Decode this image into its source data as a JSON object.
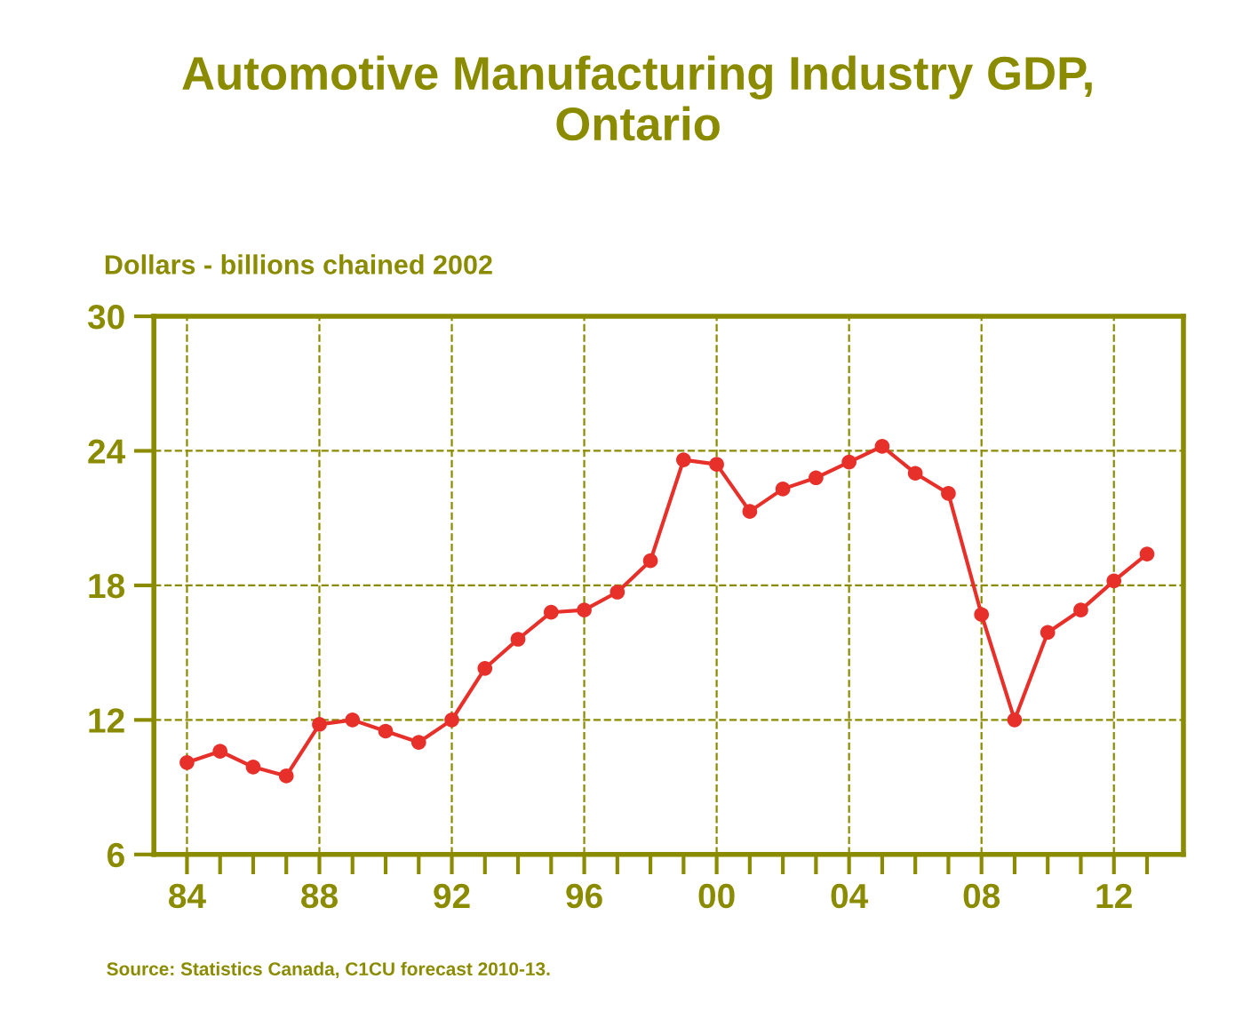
{
  "chart_data": {
    "type": "line",
    "title": "Automotive Manufacturing Industry GDP,\nOntario",
    "ylabel": "Dollars - billions chained 2002",
    "annotations": [
      "Source: Statistics Canada, C1CU forecast 2010-13."
    ],
    "x": [
      1984,
      1985,
      1986,
      1987,
      1988,
      1989,
      1990,
      1991,
      1992,
      1993,
      1994,
      1995,
      1996,
      1997,
      1998,
      1999,
      2000,
      2001,
      2002,
      2003,
      2004,
      2005,
      2006,
      2007,
      2008,
      2009,
      2010,
      2011,
      2012,
      2013
    ],
    "series": [
      {
        "color": "#e8302a",
        "values": [
          10.1,
          10.6,
          9.9,
          9.5,
          11.8,
          12.0,
          11.5,
          11.0,
          12.0,
          14.3,
          15.6,
          16.8,
          16.9,
          17.7,
          19.1,
          23.6,
          23.4,
          21.3,
          22.3,
          22.8,
          23.5,
          24.2,
          23.0,
          22.1,
          16.7,
          12.0,
          15.9,
          16.9,
          18.2,
          19.4
        ]
      }
    ],
    "xlim": [
      1983,
      2014.1
    ],
    "ylim": [
      6,
      30
    ],
    "yticks": [
      6,
      12,
      18,
      24,
      30
    ],
    "xticks": [
      {
        "value": 1984,
        "label": "84"
      },
      {
        "value": 1985,
        "label": null
      },
      {
        "value": 1986,
        "label": null
      },
      {
        "value": 1987,
        "label": null
      },
      {
        "value": 1988,
        "label": "88"
      },
      {
        "value": 1989,
        "label": null
      },
      {
        "value": 1990,
        "label": null
      },
      {
        "value": 1991,
        "label": null
      },
      {
        "value": 1992,
        "label": "92"
      },
      {
        "value": 1993,
        "label": null
      },
      {
        "value": 1994,
        "label": null
      },
      {
        "value": 1995,
        "label": null
      },
      {
        "value": 1996,
        "label": "96"
      },
      {
        "value": 1997,
        "label": null
      },
      {
        "value": 1998,
        "label": null
      },
      {
        "value": 1999,
        "label": null
      },
      {
        "value": 2000,
        "label": "00"
      },
      {
        "value": 2001,
        "label": null
      },
      {
        "value": 2002,
        "label": null
      },
      {
        "value": 2003,
        "label": null
      },
      {
        "value": 2004,
        "label": "04"
      },
      {
        "value": 2005,
        "label": null
      },
      {
        "value": 2006,
        "label": null
      },
      {
        "value": 2007,
        "label": null
      },
      {
        "value": 2008,
        "label": "08"
      },
      {
        "value": 2009,
        "label": null
      },
      {
        "value": 2010,
        "label": null
      },
      {
        "value": 2011,
        "label": null
      },
      {
        "value": 2012,
        "label": "12"
      },
      {
        "value": 2013,
        "label": null
      }
    ],
    "grid": true,
    "marker": "circle",
    "line_style": "solid"
  }
}
